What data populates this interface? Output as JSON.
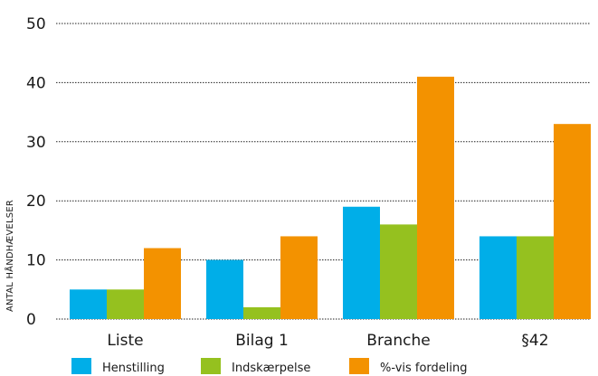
{
  "chart_data": {
    "type": "bar",
    "title": "",
    "xlabel": "",
    "ylabel": "ANTAL HÅNDHÆVELSER",
    "ylim": [
      0,
      50
    ],
    "yticks": [
      0,
      10,
      20,
      30,
      40,
      50
    ],
    "grid": true,
    "legend": "bottom",
    "categories": [
      "Liste",
      "Bilag 1",
      "Branche",
      "§42"
    ],
    "series": [
      {
        "name": "Henstilling",
        "color": "#00aee8",
        "values": [
          5,
          10,
          19,
          14
        ]
      },
      {
        "name": "Indskærpelse",
        "color": "#95c11f",
        "values": [
          5,
          2,
          16,
          14
        ]
      },
      {
        "name": "%-vis fordeling",
        "color": "#f39200",
        "values": [
          12,
          14,
          41,
          33
        ]
      }
    ]
  }
}
